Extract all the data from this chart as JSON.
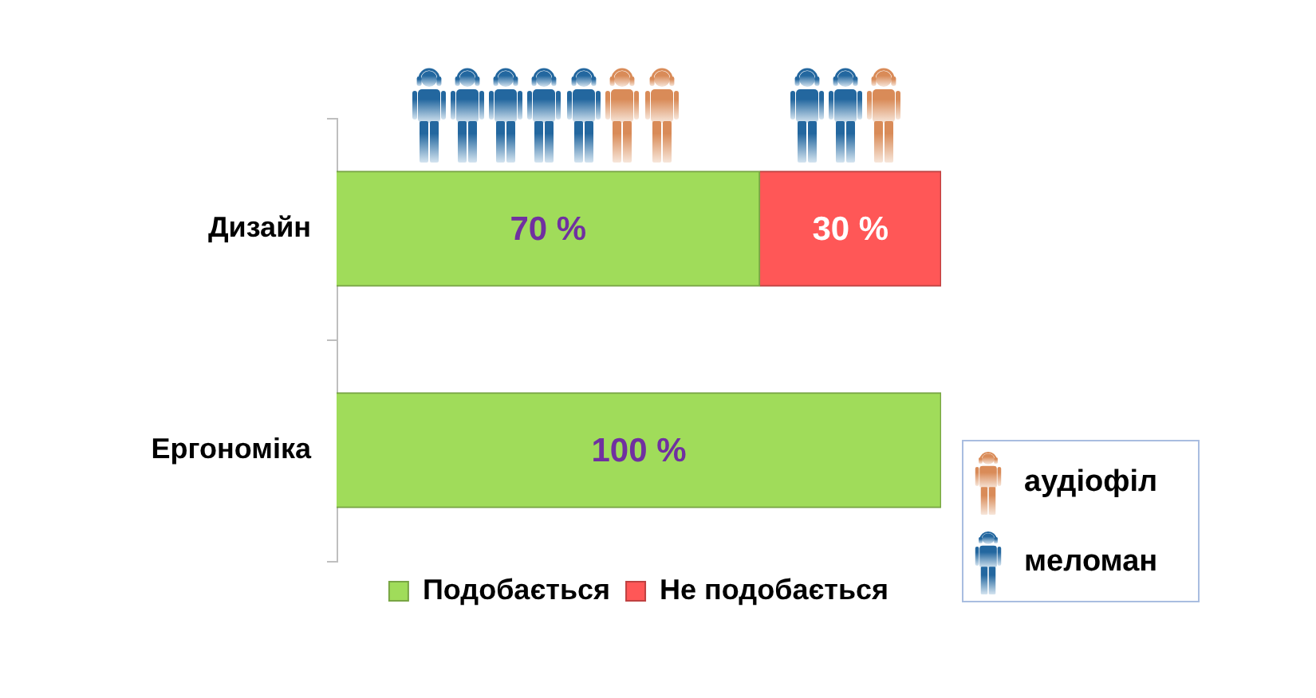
{
  "chart_data": {
    "type": "bar",
    "orientation": "horizontal",
    "stacked": true,
    "categories": [
      "Дизайн",
      "Ергономіка"
    ],
    "series": [
      {
        "name": "Подобається",
        "color": "#a0dc5a",
        "values": [
          70,
          100
        ],
        "value_labels": [
          "70 %",
          "100 %"
        ]
      },
      {
        "name": "Не подобається",
        "color": "#ff5757",
        "values": [
          30,
          null
        ],
        "value_labels": [
          "30 %",
          null
        ]
      }
    ],
    "xlim": [
      0,
      100
    ],
    "tick_labels": "y",
    "grid": false,
    "legend": "bottom",
    "data_labels": true,
    "annotations": [
      "аудіофіл",
      "меломан"
    ]
  }
}
